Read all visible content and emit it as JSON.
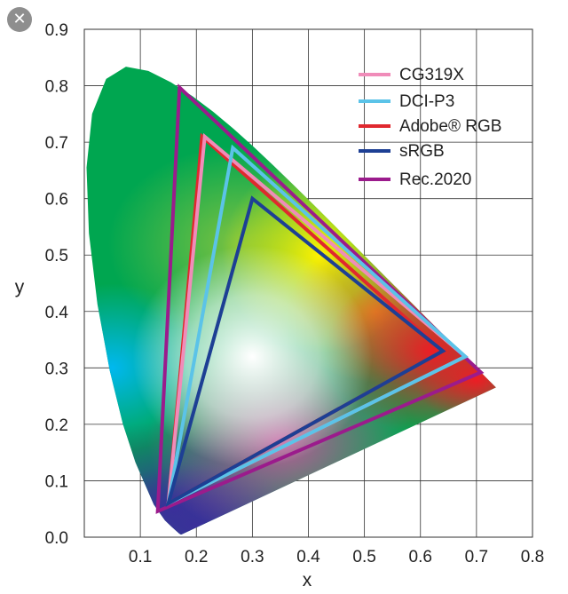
{
  "overlay": {
    "close_icon": "✕"
  },
  "chart_data": {
    "type": "line",
    "title": "",
    "xlabel": "x",
    "ylabel": "y",
    "xlim": [
      0.0,
      0.8
    ],
    "ylim": [
      0.0,
      0.9
    ],
    "x_ticks": [
      "0.1",
      "0.2",
      "0.3",
      "0.4",
      "0.5",
      "0.6",
      "0.7",
      "0.8"
    ],
    "y_ticks": [
      "0.0",
      "0.1",
      "0.2",
      "0.3",
      "0.4",
      "0.5",
      "0.6",
      "0.7",
      "0.8",
      "0.9"
    ],
    "grid": true,
    "legend_position": "top-right",
    "spectral_locus": [
      [
        0.1741,
        0.005
      ],
      [
        0.1733,
        0.0048
      ],
      [
        0.1726,
        0.0048
      ],
      [
        0.1714,
        0.0051
      ],
      [
        0.1689,
        0.0069
      ],
      [
        0.1644,
        0.0109
      ],
      [
        0.1566,
        0.0177
      ],
      [
        0.144,
        0.0297
      ],
      [
        0.1241,
        0.0578
      ],
      [
        0.0913,
        0.1327
      ],
      [
        0.0687,
        0.2007
      ],
      [
        0.0454,
        0.295
      ],
      [
        0.0235,
        0.4127
      ],
      [
        0.0082,
        0.5384
      ],
      [
        0.0039,
        0.6548
      ],
      [
        0.0139,
        0.7502
      ],
      [
        0.0389,
        0.812
      ],
      [
        0.0743,
        0.8338
      ],
      [
        0.1142,
        0.8262
      ],
      [
        0.1547,
        0.8059
      ],
      [
        0.1929,
        0.7816
      ],
      [
        0.2296,
        0.7543
      ],
      [
        0.2658,
        0.7243
      ],
      [
        0.3016,
        0.6923
      ],
      [
        0.3373,
        0.6589
      ],
      [
        0.3731,
        0.6245
      ],
      [
        0.4087,
        0.5896
      ],
      [
        0.4441,
        0.5547
      ],
      [
        0.4788,
        0.5202
      ],
      [
        0.5125,
        0.4866
      ],
      [
        0.5448,
        0.4544
      ],
      [
        0.5752,
        0.4242
      ],
      [
        0.6029,
        0.3965
      ],
      [
        0.627,
        0.3725
      ],
      [
        0.6482,
        0.3514
      ],
      [
        0.6658,
        0.334
      ],
      [
        0.6801,
        0.3197
      ],
      [
        0.6915,
        0.3083
      ],
      [
        0.7006,
        0.2993
      ],
      [
        0.7079,
        0.292
      ],
      [
        0.714,
        0.2859
      ],
      [
        0.719,
        0.2809
      ],
      [
        0.723,
        0.277
      ],
      [
        0.726,
        0.274
      ],
      [
        0.7283,
        0.2717
      ],
      [
        0.73,
        0.27
      ],
      [
        0.7347,
        0.2653
      ]
    ],
    "series": [
      {
        "name": "CG319X",
        "color": "#f08cb9",
        "x": [
          0.68,
          0.215,
          0.15
        ],
        "y": [
          0.32,
          0.71,
          0.06
        ]
      },
      {
        "name": "DCI-P3",
        "color": "#5bc3e8",
        "x": [
          0.68,
          0.265,
          0.15
        ],
        "y": [
          0.32,
          0.69,
          0.06
        ]
      },
      {
        "name": "Adobe® RGB",
        "color": "#e0282e",
        "x": [
          0.64,
          0.21,
          0.15
        ],
        "y": [
          0.33,
          0.71,
          0.06
        ]
      },
      {
        "name": "sRGB",
        "color": "#1d3f94",
        "x": [
          0.64,
          0.3,
          0.15
        ],
        "y": [
          0.33,
          0.6,
          0.06
        ]
      },
      {
        "name": "Rec.2020",
        "color": "#9b1b8c",
        "x": [
          0.708,
          0.17,
          0.131
        ],
        "y": [
          0.292,
          0.797,
          0.046
        ]
      }
    ]
  }
}
